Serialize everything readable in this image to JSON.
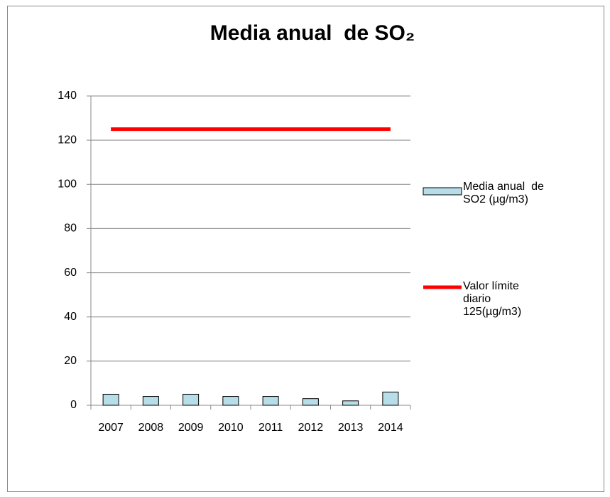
{
  "chart_data": {
    "type": "bar",
    "title": "Media anual  de SO₂",
    "categories": [
      "2007",
      "2008",
      "2009",
      "2010",
      "2011",
      "2012",
      "2013",
      "2014"
    ],
    "series": [
      {
        "name": "Media anual  de SO2 (µg/m3)",
        "type": "bar",
        "color": "#b7dde8",
        "values": [
          5,
          4,
          5,
          4,
          4,
          3,
          2,
          6
        ]
      },
      {
        "name": "Valor límite diario 125(µg/m3)",
        "type": "line",
        "color": "#ff0000",
        "values": [
          125,
          125,
          125,
          125,
          125,
          125,
          125,
          125
        ]
      }
    ],
    "ylim": [
      0,
      140
    ],
    "yticks": [
      0,
      20,
      40,
      60,
      80,
      100,
      120,
      140
    ],
    "grid": true,
    "legend": "right"
  }
}
